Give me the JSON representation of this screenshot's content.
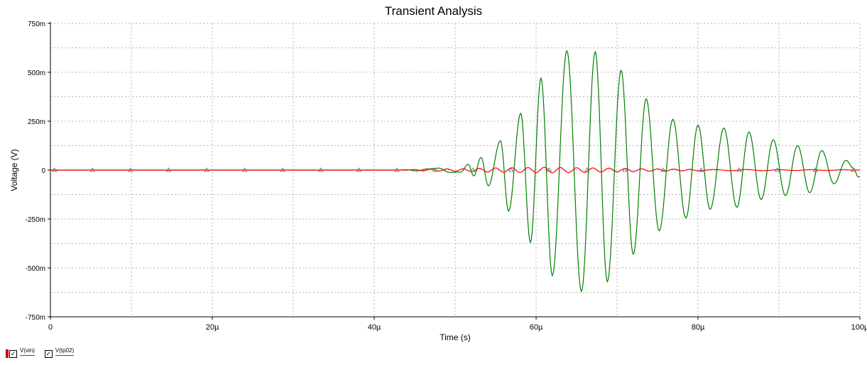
{
  "chart_data": {
    "type": "line",
    "title": "Transient Analysis",
    "xlabel": "Time (s)",
    "ylabel": "Voltage (V)",
    "xlim": [
      0,
      100
    ],
    "ylim": [
      -0.75,
      0.75
    ],
    "x_unit_scale": "µ",
    "x_ticks": [
      0,
      20,
      40,
      60,
      80,
      100
    ],
    "x_tick_labels": [
      "0",
      "20µ",
      "40µ",
      "60µ",
      "80µ",
      "100µ"
    ],
    "y_ticks": [
      0.75,
      0.5,
      0.25,
      0,
      -0.25,
      -0.5,
      -0.75
    ],
    "y_tick_labels": [
      "750m",
      "500m",
      "250m",
      "0",
      "-250m",
      "-500m",
      "-750m"
    ],
    "grid": true,
    "legend_position": "bottom-left",
    "series": [
      {
        "name": "V(vin)",
        "color": "#ff0000",
        "marker": "triangle",
        "points": [
          [
            0,
            0
          ],
          [
            44,
            0
          ],
          [
            45,
            0.003
          ],
          [
            46,
            -0.004
          ],
          [
            47,
            0.005
          ],
          [
            48,
            -0.005
          ],
          [
            49,
            0.006
          ],
          [
            50,
            -0.006
          ],
          [
            51,
            0.007
          ],
          [
            52,
            -0.008
          ],
          [
            53,
            0.009
          ],
          [
            54,
            -0.01
          ],
          [
            55,
            0.011
          ],
          [
            56,
            -0.011
          ],
          [
            57,
            0.012
          ],
          [
            58,
            -0.012
          ],
          [
            59,
            0.013
          ],
          [
            60,
            -0.013
          ],
          [
            61,
            0.014
          ],
          [
            62,
            -0.014
          ],
          [
            63,
            0.013
          ],
          [
            64,
            -0.013
          ],
          [
            65,
            0.012
          ],
          [
            66,
            -0.012
          ],
          [
            67,
            0.011
          ],
          [
            68,
            -0.01
          ],
          [
            69,
            0.01
          ],
          [
            70,
            -0.009
          ],
          [
            71,
            0.008
          ],
          [
            72,
            -0.008
          ],
          [
            73,
            0.007
          ],
          [
            74,
            -0.006
          ],
          [
            75,
            0.006
          ],
          [
            76,
            -0.005
          ],
          [
            77,
            0.005
          ],
          [
            78,
            -0.004
          ],
          [
            79,
            0.004
          ],
          [
            80,
            -0.004
          ],
          [
            82,
            0.003
          ],
          [
            84,
            -0.003
          ],
          [
            86,
            0.003
          ],
          [
            88,
            -0.003
          ],
          [
            90,
            0.002
          ],
          [
            92,
            -0.002
          ],
          [
            94,
            0.002
          ],
          [
            96,
            -0.002
          ],
          [
            98,
            0.002
          ],
          [
            99,
            0
          ],
          [
            100,
            0
          ]
        ]
      },
      {
        "name": "V(tp02)",
        "color": "#008000",
        "marker": "triangle",
        "points": [
          [
            0,
            0
          ],
          [
            43,
            0
          ],
          [
            44,
            0.002
          ],
          [
            45.2,
            -0.004
          ],
          [
            46.6,
            0.006
          ],
          [
            48.0,
            0.01
          ],
          [
            49.3,
            -0.012
          ],
          [
            50.7,
            -0.01
          ],
          [
            51.6,
            0.03
          ],
          [
            52.3,
            -0.03
          ],
          [
            53.2,
            0.065
          ],
          [
            54.1,
            -0.08
          ],
          [
            55.6,
            0.15
          ],
          [
            56.6,
            -0.21
          ],
          [
            58.1,
            0.29
          ],
          [
            59.3,
            -0.37
          ],
          [
            60.6,
            0.47
          ],
          [
            62.0,
            -0.54
          ],
          [
            63.8,
            0.61
          ],
          [
            65.6,
            -0.62
          ],
          [
            67.3,
            0.605
          ],
          [
            68.8,
            -0.57
          ],
          [
            70.5,
            0.51
          ],
          [
            72.0,
            -0.43
          ],
          [
            73.6,
            0.365
          ],
          [
            75.2,
            -0.31
          ],
          [
            76.9,
            0.26
          ],
          [
            78.5,
            -0.245
          ],
          [
            80.0,
            0.23
          ],
          [
            81.5,
            -0.2
          ],
          [
            83.2,
            0.215
          ],
          [
            84.8,
            -0.19
          ],
          [
            86.3,
            0.195
          ],
          [
            87.8,
            -0.15
          ],
          [
            89.3,
            0.155
          ],
          [
            90.8,
            -0.13
          ],
          [
            92.3,
            0.125
          ],
          [
            93.8,
            -0.115
          ],
          [
            95.3,
            0.1
          ],
          [
            96.8,
            -0.07
          ],
          [
            98.3,
            0.05
          ],
          [
            99.2,
            0.01
          ],
          [
            99.8,
            -0.035
          ],
          [
            100,
            -0.035
          ]
        ]
      }
    ]
  }
}
